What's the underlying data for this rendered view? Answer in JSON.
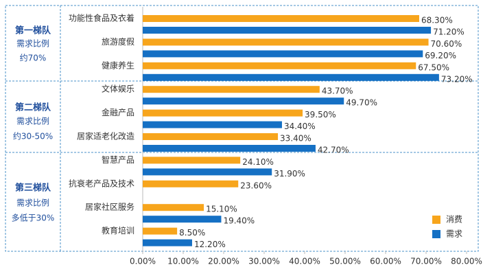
{
  "chart_data": {
    "type": "bar",
    "orientation": "horizontal",
    "categories": [
      "功能性食品及衣着",
      "旅游度假",
      "健康养生",
      "文体娱乐",
      "金融产品",
      "居家适老化改造",
      "智慧产品",
      "抗衰老产品及技术",
      "居家社区服务",
      "教育培训"
    ],
    "series": [
      {
        "name": "消费",
        "color": "#f7a51c",
        "values": [
          68.3,
          70.6,
          67.5,
          43.7,
          39.5,
          33.4,
          24.1,
          23.6,
          15.1,
          8.5
        ],
        "value_labels": [
          "68.30%",
          "70.60%",
          "67.50%",
          "43.70%",
          "39.50%",
          "33.40%",
          "24.10%",
          "23.60%",
          "15.10%",
          "8.50%"
        ]
      },
      {
        "name": "需求",
        "color": "#1570c4",
        "values": [
          71.2,
          69.2,
          73.2,
          49.7,
          34.4,
          42.7,
          31.9,
          null,
          19.4,
          12.2
        ],
        "value_labels": [
          "71.20%",
          "69.20%",
          "73.20%",
          "49.70%",
          "34.40%",
          "42.70%",
          "31.90%",
          null,
          "19.40%",
          "12.20%"
        ]
      }
    ],
    "xlim": [
      0,
      80
    ],
    "xticks": [
      {
        "value": 0,
        "label": "0.00%"
      },
      {
        "value": 10,
        "label": "10.00%"
      },
      {
        "value": 20,
        "label": "20.00%"
      },
      {
        "value": 30,
        "label": "30.00%"
      },
      {
        "value": 40,
        "label": "40.00%"
      },
      {
        "value": 50,
        "label": "50.00%"
      },
      {
        "value": 60,
        "label": "60.00%"
      },
      {
        "value": 70,
        "label": "70.00%"
      },
      {
        "value": 80,
        "label": "80.00%"
      }
    ],
    "tiers": [
      {
        "title": "第一梯队",
        "lines": [
          "需求比例",
          "约70%"
        ]
      },
      {
        "title": "第二梯队",
        "lines": [
          "需求比例",
          "约30-50%"
        ]
      },
      {
        "title": "第三梯队",
        "lines": [
          "需求比例",
          "多低于30%"
        ]
      }
    ]
  }
}
